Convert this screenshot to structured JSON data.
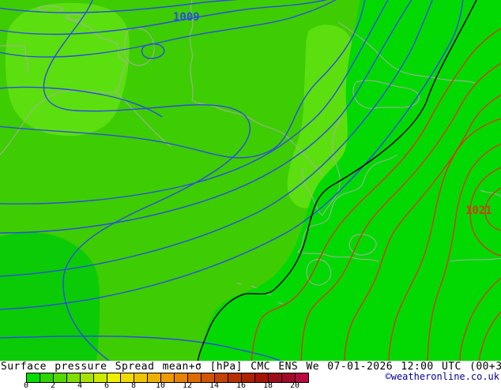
{
  "map": {
    "labels": {
      "isobar_low": "1009",
      "isobar_high": "1021"
    },
    "colors": {
      "shading_base_green": "#3dcd02",
      "shading_light_green": "#5cdf0f",
      "shading_pure_green": "#02d902",
      "shading_dark_green": "#0acb06",
      "isobar_blue": "#2e4be4",
      "isobar_black": "#000000",
      "isobar_red": "#cd3d12",
      "coastline_gray": "#a9ada2"
    }
  },
  "footer": {
    "title": "Surface pressure Spread mean+σ [hPa] CMC ENS We 07-01-2026 12:00 UTC (00+36)",
    "copyright": "©weatheronline.co.uk"
  },
  "scale": {
    "unit": "hPa",
    "ticks": [
      "0",
      "2",
      "4",
      "6",
      "8",
      "10",
      "12",
      "14",
      "16",
      "18",
      "20"
    ],
    "cell_colors": [
      "#00db00",
      "#2ed400",
      "#55d800",
      "#7fdd00",
      "#a8e300",
      "#cdea00",
      "#eeee00",
      "#f1da00",
      "#eec500",
      "#eeb000",
      "#ee9900",
      "#e78300",
      "#dd6c00",
      "#d05500",
      "#c44100",
      "#b93000",
      "#ae2100",
      "#a31407",
      "#9c0d18",
      "#a00a2a",
      "#b80840"
    ]
  },
  "chart_data": {
    "type": "heatmap",
    "title": "Surface pressure Spread mean+σ [hPa] CMC ENS",
    "valid_time": "We 07-01-2026 12:00 UTC",
    "run_offset": "(00+36)",
    "legend_range": [
      0,
      20
    ],
    "legend_step": 2,
    "isobar_labels": [
      1009,
      1021
    ],
    "spread_shading_range_hpa": [
      0,
      4
    ]
  }
}
